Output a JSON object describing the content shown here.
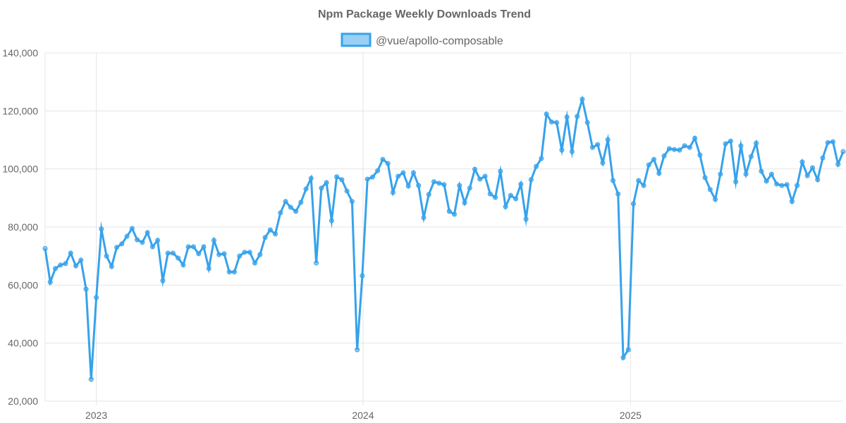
{
  "chart_data": {
    "type": "line",
    "title": "Npm Package Weekly Downloads Trend",
    "xlabel": "",
    "ylabel": "",
    "ylim": [
      20000,
      140000
    ],
    "yticks": [
      "20,000",
      "40,000",
      "60,000",
      "80,000",
      "100,000",
      "120,000",
      "140,000"
    ],
    "xticks": [
      "2023",
      "2024",
      "2025"
    ],
    "grid": true,
    "legend_position": "top",
    "colors": {
      "line": "#36a2eb",
      "fill": "#9ad0f5",
      "grid": "#e5e5e5",
      "text": "#666666"
    },
    "x": [
      "2022-10-23",
      "2022-10-30",
      "2022-11-06",
      "2022-11-13",
      "2022-11-20",
      "2022-11-27",
      "2022-12-04",
      "2022-12-11",
      "2022-12-18",
      "2022-12-25",
      "2023-01-01",
      "2023-01-08",
      "2023-01-15",
      "2023-01-22",
      "2023-01-29",
      "2023-02-05",
      "2023-02-12",
      "2023-02-19",
      "2023-02-26",
      "2023-03-05",
      "2023-03-12",
      "2023-03-19",
      "2023-03-26",
      "2023-04-02",
      "2023-04-09",
      "2023-04-16",
      "2023-04-23",
      "2023-04-30",
      "2023-05-07",
      "2023-05-14",
      "2023-05-21",
      "2023-05-28",
      "2023-06-04",
      "2023-06-11",
      "2023-06-18",
      "2023-06-25",
      "2023-07-02",
      "2023-07-09",
      "2023-07-16",
      "2023-07-23",
      "2023-07-30",
      "2023-08-06",
      "2023-08-13",
      "2023-08-20",
      "2023-08-27",
      "2023-09-03",
      "2023-09-10",
      "2023-09-17",
      "2023-09-24",
      "2023-10-01",
      "2023-10-08",
      "2023-10-15",
      "2023-10-22",
      "2023-10-29",
      "2023-11-05",
      "2023-11-12",
      "2023-11-19",
      "2023-11-26",
      "2023-12-03",
      "2023-12-10",
      "2023-12-17",
      "2023-12-24",
      "2023-12-31",
      "2024-01-07",
      "2024-01-14",
      "2024-01-21",
      "2024-01-28",
      "2024-02-04",
      "2024-02-11",
      "2024-02-18",
      "2024-02-25",
      "2024-03-03",
      "2024-03-10",
      "2024-03-17",
      "2024-03-24",
      "2024-03-31",
      "2024-04-07",
      "2024-04-14",
      "2024-04-21",
      "2024-04-28",
      "2024-05-05",
      "2024-05-12",
      "2024-05-19",
      "2024-05-26",
      "2024-06-02",
      "2024-06-09",
      "2024-06-16",
      "2024-06-23",
      "2024-06-30",
      "2024-07-07",
      "2024-07-14",
      "2024-07-21",
      "2024-07-28",
      "2024-08-04",
      "2024-08-11",
      "2024-08-18",
      "2024-08-25",
      "2024-09-01",
      "2024-09-08",
      "2024-09-15",
      "2024-09-22",
      "2024-09-29",
      "2024-10-06",
      "2024-10-13",
      "2024-10-20",
      "2024-10-27",
      "2024-11-03",
      "2024-11-10",
      "2024-11-17",
      "2024-11-24",
      "2024-12-01",
      "2024-12-08",
      "2024-12-15",
      "2024-12-22",
      "2024-12-29",
      "2025-01-05",
      "2025-01-12",
      "2025-01-19",
      "2025-01-26",
      "2025-02-02",
      "2025-02-09",
      "2025-02-16",
      "2025-02-23",
      "2025-03-02",
      "2025-03-09",
      "2025-03-16",
      "2025-03-23",
      "2025-03-30",
      "2025-04-06",
      "2025-04-13",
      "2025-04-20",
      "2025-04-27",
      "2025-05-04",
      "2025-05-11",
      "2025-05-18",
      "2025-05-25",
      "2025-06-01",
      "2025-06-08",
      "2025-06-15",
      "2025-06-22",
      "2025-06-29",
      "2025-07-06",
      "2025-07-13",
      "2025-07-20",
      "2025-07-27",
      "2025-08-03",
      "2025-08-10",
      "2025-08-17",
      "2025-08-24",
      "2025-08-31",
      "2025-09-07",
      "2025-09-14",
      "2025-09-21",
      "2025-09-28",
      "2025-10-05",
      "2025-10-12",
      "2025-10-19"
    ],
    "series": [
      {
        "name": "@vue/apollo-composable",
        "values": [
          72600,
          61000,
          65700,
          66900,
          67400,
          71000,
          66600,
          68600,
          58600,
          27500,
          55700,
          79300,
          70000,
          66400,
          73000,
          74200,
          76800,
          79500,
          75600,
          74700,
          78100,
          73200,
          75400,
          61500,
          71000,
          71000,
          69300,
          66900,
          73200,
          73200,
          70800,
          73200,
          65700,
          75400,
          70500,
          70800,
          64500,
          64500,
          70000,
          71300,
          71300,
          67600,
          70500,
          76400,
          79000,
          77600,
          84900,
          88800,
          86800,
          85400,
          88500,
          93100,
          96800,
          67600,
          93400,
          95300,
          82200,
          97300,
          96300,
          92400,
          88800,
          37700,
          63200,
          96500,
          97200,
          99400,
          103300,
          101900,
          91900,
          97500,
          98700,
          94100,
          98700,
          94300,
          83200,
          91200,
          95600,
          95100,
          94600,
          85400,
          84400,
          94300,
          88300,
          93400,
          99900,
          96500,
          97500,
          91400,
          90200,
          99200,
          87000,
          90900,
          89700,
          94800,
          82700,
          96300,
          100900,
          103600,
          118900,
          116200,
          116000,
          106500,
          117900,
          106000,
          118100,
          124000,
          116000,
          107400,
          108400,
          102100,
          110100,
          96000,
          91400,
          35000,
          37700,
          88000,
          96000,
          94300,
          101400,
          103300,
          98500,
          104500,
          107000,
          106700,
          106500,
          108000,
          107400,
          110600,
          104800,
          97000,
          92900,
          89500,
          98200,
          108700,
          109600,
          95600,
          108000,
          98200,
          104300,
          108900,
          99200,
          95800,
          98200,
          94800,
          94300,
          94600,
          88800,
          94300,
          102400,
          97700,
          100400,
          96300,
          103800,
          109100,
          109400,
          101600,
          106000
        ]
      }
    ]
  }
}
